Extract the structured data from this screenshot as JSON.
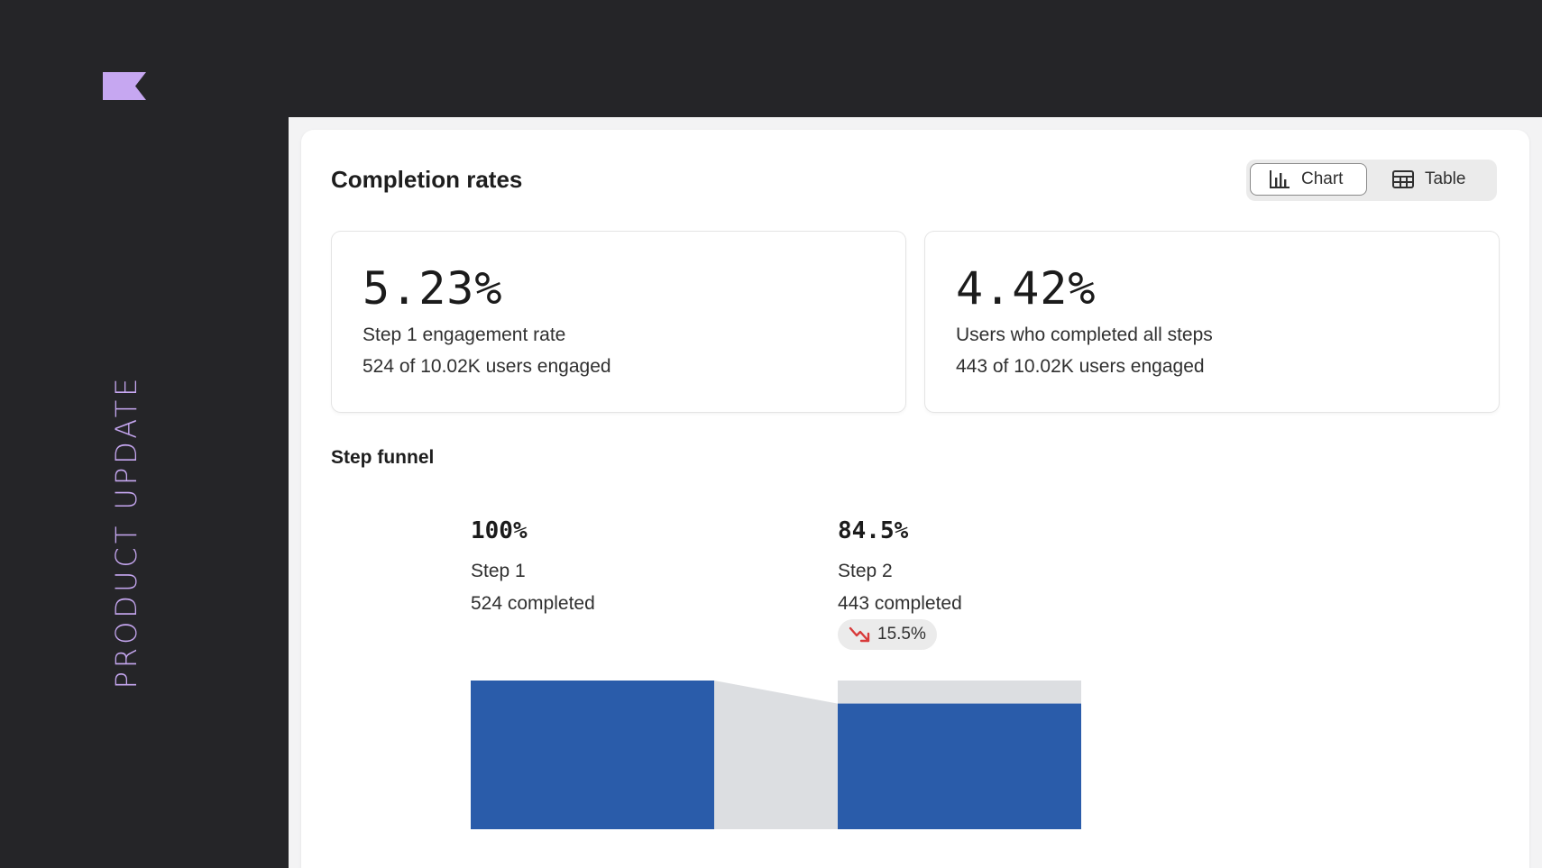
{
  "brand": {
    "logo_icon": "flag-icon",
    "logo_color": "#c6a7f1",
    "side_label": "PRODUCT UPDATE"
  },
  "header": {
    "title": "Completion rates",
    "view_toggle": {
      "chart_label": "Chart",
      "chart_icon": "bar-chart-icon",
      "table_label": "Table",
      "table_icon": "table-icon",
      "selected": "Chart"
    }
  },
  "stats": [
    {
      "value": "5.23%",
      "label": "Step 1 engagement rate",
      "sub": "524 of 10.02K users engaged"
    },
    {
      "value": "4.42%",
      "label": "Users who completed all steps",
      "sub": "443 of 10.02K users engaged"
    }
  ],
  "funnel": {
    "title": "Step funnel",
    "colors": {
      "bar": "#2a5caa",
      "remainder": "#dcdee1",
      "drop_icon": "#d83a3a"
    },
    "steps": [
      {
        "pct": "100%",
        "name": "Step 1",
        "count": "524 completed",
        "value": 100
      },
      {
        "pct": "84.5%",
        "name": "Step 2",
        "count": "443 completed",
        "value": 84.5,
        "drop": "15.5%"
      }
    ]
  }
}
